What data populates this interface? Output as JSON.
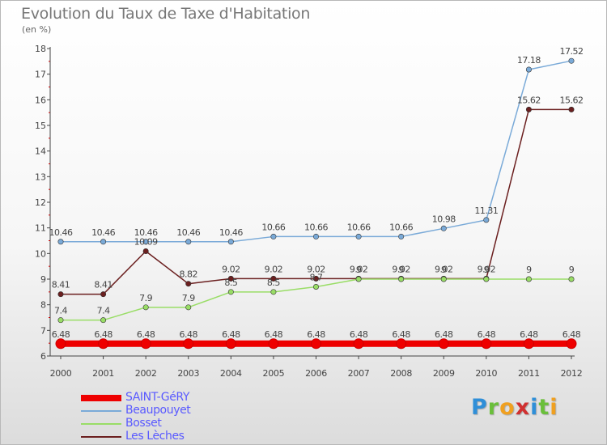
{
  "chart_data": {
    "type": "line",
    "title": "Evolution du Taux de Taxe d'Habitation",
    "unit_label": "(en %)",
    "x": [
      "2000",
      "2001",
      "2002",
      "2003",
      "2004",
      "2005",
      "2006",
      "2007",
      "2008",
      "2009",
      "2010",
      "2011",
      "2012"
    ],
    "ylim": [
      6,
      18
    ],
    "yticks": [
      6,
      7,
      8,
      9,
      10,
      11,
      12,
      13,
      14,
      15,
      16,
      17,
      18
    ],
    "grid": false,
    "legend_position": "bottom-left",
    "series": [
      {
        "name": "Les Lèches",
        "color": "#6b1f1f",
        "values": [
          8.41,
          8.41,
          10.09,
          8.82,
          9.02,
          9.02,
          9.02,
          9.02,
          9.02,
          9.02,
          9.02,
          15.62,
          15.62
        ],
        "labels": [
          "8.41",
          "8.41",
          "10.09",
          "8.82",
          "9.02",
          "9.02",
          "9.02",
          "9.02",
          "9.02",
          "9.02",
          "9.02",
          "15.62",
          "15.62"
        ]
      },
      {
        "name": "Bosset",
        "color": "#99dd66",
        "values": [
          7.4,
          7.4,
          7.9,
          7.9,
          8.5,
          8.5,
          8.7,
          9,
          9,
          9,
          9,
          9,
          9
        ],
        "labels": [
          "7.4",
          "7.4",
          "7.9",
          "7.9",
          "8.5",
          "8.5",
          "8.7",
          "9",
          "9",
          "9",
          "9",
          "9",
          "9"
        ]
      },
      {
        "name": "Beaupouyet",
        "color": "#7aaad8",
        "values": [
          10.46,
          10.46,
          10.46,
          10.46,
          10.46,
          10.66,
          10.66,
          10.66,
          10.66,
          10.98,
          11.31,
          17.18,
          17.52
        ],
        "labels": [
          "10.46",
          "10.46",
          "10.46",
          "10.46",
          "10.46",
          "10.66",
          "10.66",
          "10.66",
          "10.66",
          "10.98",
          "11.31",
          "17.18",
          "17.52"
        ]
      },
      {
        "name": "SAINT-GéRY",
        "color": "#ee0000",
        "values": [
          6.48,
          6.48,
          6.48,
          6.48,
          6.48,
          6.48,
          6.48,
          6.48,
          6.48,
          6.48,
          6.48,
          6.48,
          6.48
        ],
        "labels": [
          "6.48",
          "6.48",
          "6.48",
          "6.48",
          "6.48",
          "6.48",
          "6.48",
          "6.48",
          "6.48",
          "6.48",
          "6.48",
          "6.48",
          "6.48"
        ]
      }
    ]
  },
  "legend": [
    {
      "name": "SAINT-GéRY",
      "color": "#ee0000"
    },
    {
      "name": "Beaupouyet",
      "color": "#7aaad8"
    },
    {
      "name": "Bosset",
      "color": "#99dd66"
    },
    {
      "name": "Les Lèches",
      "color": "#6b1f1f"
    }
  ],
  "logo": {
    "letters": [
      "P",
      "r",
      "o",
      "x",
      "i",
      "t",
      "i"
    ],
    "colors": [
      "#2f8fd8",
      "#6abf3b",
      "#f0a020",
      "#d03030",
      "#2f8fd8",
      "#6abf3b",
      "#f0a020"
    ]
  }
}
